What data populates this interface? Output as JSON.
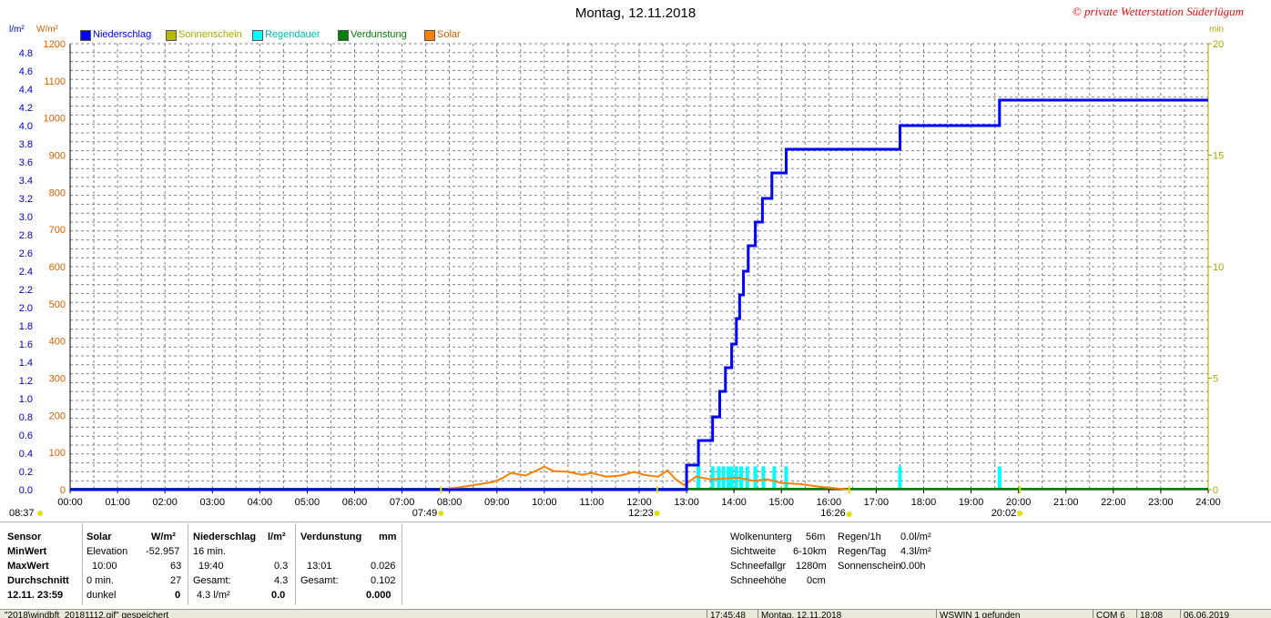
{
  "title": "Montag, 12.11.2018",
  "watermark": "© private Wetterstation Süderlügum",
  "axes": {
    "left_unit_1": "l/m²",
    "left_unit_2": "W/m²",
    "right_unit": "min"
  },
  "colors": {
    "niederschlag": "#0000ff",
    "sonnenschein": "#b8b800",
    "regendauer": "#00ffff",
    "verdunstung": "#008000",
    "solar": "#ff8000",
    "axis_blue": "#0000c0",
    "axis_orange": "#d06000",
    "axis_yellow": "#a8a800",
    "grid": "#808080"
  },
  "legend": [
    {
      "label": "Niederschlag",
      "color": "#0000ff"
    },
    {
      "label": "Sonnenschein",
      "color": "#b8b800"
    },
    {
      "label": "Regendauer",
      "color": "#00ffff"
    },
    {
      "label": "Verdunstung",
      "color": "#008000"
    },
    {
      "label": "Solar",
      "color": "#ff8000"
    }
  ],
  "chart_data": {
    "type": "line",
    "title": "Montag, 12.11.2018",
    "x_ticks": [
      "00:00",
      "01:00",
      "02:00",
      "03:00",
      "04:00",
      "05:00",
      "06:00",
      "07:00",
      "08:00",
      "09:00",
      "10:00",
      "11:00",
      "12:00",
      "13:00",
      "14:00",
      "15:00",
      "16:00",
      "17:00",
      "18:00",
      "19:00",
      "20:00",
      "21:00",
      "22:00",
      "23:00",
      "24:00"
    ],
    "xlim": [
      0,
      24
    ],
    "y_left_precip": {
      "ylim": [
        0,
        5.0
      ],
      "ticks": [
        "0.0",
        "0.2",
        "0.4",
        "0.6",
        "0.8",
        "1.0",
        "1.2",
        "1.4",
        "1.6",
        "1.8",
        "2.0",
        "2.2",
        "2.4",
        "2.6",
        "2.8",
        "3.0",
        "3.2",
        "3.4",
        "3.6",
        "3.8",
        "4.0",
        "4.2",
        "4.4",
        "4.6",
        "4.8"
      ]
    },
    "y_left_solar": {
      "ylim": [
        0,
        1200
      ],
      "ticks": [
        "0",
        "100",
        "200",
        "300",
        "400",
        "500",
        "600",
        "700",
        "800",
        "900",
        "1000",
        "1100",
        "1200"
      ]
    },
    "y_right_min": {
      "ylim": [
        0,
        20
      ],
      "ticks": [
        "0",
        "5",
        "10",
        "15",
        "20"
      ]
    },
    "sun_markers": [
      {
        "label": "08:37",
        "x": 8.62,
        "row": "bottom-left"
      },
      {
        "label": "07:49",
        "x": 7.82,
        "row": "lower"
      },
      {
        "label": "12:23",
        "x": 12.38,
        "row": "lower"
      },
      {
        "label": "16:26",
        "x": 16.43,
        "row": "lower-upper"
      },
      {
        "label": "20:02",
        "x": 20.03,
        "row": "lower"
      }
    ],
    "series": [
      {
        "name": "Niederschlag",
        "axis": "left_precip",
        "step": true,
        "x": [
          0,
          12.92,
          13.0,
          13.25,
          13.55,
          13.7,
          13.82,
          13.95,
          14.05,
          14.12,
          14.2,
          14.3,
          14.45,
          14.6,
          14.8,
          15.1,
          17.5,
          19.6,
          24.0
        ],
        "values": [
          0.0,
          0.0,
          0.27,
          0.54,
          0.8,
          1.08,
          1.34,
          1.6,
          1.88,
          2.14,
          2.4,
          2.68,
          2.94,
          3.2,
          3.48,
          3.74,
          4.0,
          4.28,
          4.28
        ]
      },
      {
        "name": "Solar",
        "axis": "left_solar",
        "x": [
          7.82,
          8.0,
          8.3,
          8.6,
          8.9,
          9.1,
          9.3,
          9.6,
          9.9,
          10.0,
          10.2,
          10.5,
          10.8,
          11.0,
          11.3,
          11.6,
          11.9,
          12.1,
          12.4,
          12.6,
          12.75,
          12.95,
          13.2,
          13.5,
          13.8,
          14.1,
          14.4,
          14.7,
          15.0,
          15.4,
          15.8,
          16.2,
          16.43
        ],
        "values": [
          0,
          3,
          8,
          14,
          20,
          30,
          45,
          38,
          55,
          62,
          50,
          48,
          40,
          45,
          35,
          38,
          48,
          40,
          35,
          52,
          30,
          12,
          35,
          28,
          30,
          32,
          24,
          28,
          18,
          15,
          8,
          3,
          0
        ]
      },
      {
        "name": "Regendauer",
        "axis": "right_min",
        "type": "bar",
        "x": [
          13.25,
          13.55,
          13.68,
          13.78,
          13.88,
          13.95,
          14.05,
          14.15,
          14.28,
          14.45,
          14.62,
          14.85,
          15.1,
          17.5,
          19.6
        ],
        "values": [
          1,
          1,
          1,
          1,
          1,
          1,
          1,
          1,
          1,
          1,
          1,
          1,
          1,
          1,
          1
        ]
      },
      {
        "name": "Verdunstung",
        "axis": "left_precip",
        "x": [
          0,
          24
        ],
        "values": [
          0.0,
          0.0
        ]
      }
    ]
  },
  "panel": {
    "sensor": {
      "head": "Sensor",
      "min": "MinWert",
      "max": "MaxWert",
      "avg": "Durchschnitt",
      "date": "12.11.  23:59"
    },
    "solar": {
      "head": "Solar",
      "unit": "W/m²",
      "r1a": "Elevation",
      "r1b": "-52.957",
      "r2a": "10:00",
      "r2b": "63",
      "r3a": "0 min.",
      "r3b": "27",
      "r4a": "dunkel",
      "r4b": "0"
    },
    "niederschlag": {
      "head": "Niederschlag",
      "unit": "l/m²",
      "r1a": "16 min.",
      "r2a": "19:40",
      "r2b": "0.3",
      "r3a": "Gesamt:",
      "r3b": "4.3",
      "r4a": "4.3 l/m²",
      "r4b": "0.0"
    },
    "verdunstung": {
      "head": "Verdunstung",
      "unit": "mm",
      "r2a": "13:01",
      "r2b": "0.026",
      "r3a": "Gesamt:",
      "r3b": "0.102",
      "r4b": "0.000"
    },
    "weather": [
      {
        "k": "Wolkenunterg",
        "v": "56m"
      },
      {
        "k": "Sichtweite",
        "v": "6-10km"
      },
      {
        "k": "Schneefallgr",
        "v": "1280m"
      },
      {
        "k": "Schneehöhe",
        "v": "0cm"
      }
    ],
    "rain": [
      {
        "k": "Regen/1h",
        "v": "0.0l/m²"
      },
      {
        "k": "Regen/Tag",
        "v": "4.3l/m²"
      },
      {
        "k": "Sonnenschein",
        "v": "0.00h"
      }
    ]
  },
  "statusbar": {
    "file": "\"2018\\windbft_20181112.gif\" gespeichert",
    "time": "17:45:48",
    "date": "Montag, 12.11.2018",
    "ws": "WSWIN 1 gefunden",
    "com": "COM 6",
    "t2": "18:08",
    "d2": "06.06.2019"
  }
}
